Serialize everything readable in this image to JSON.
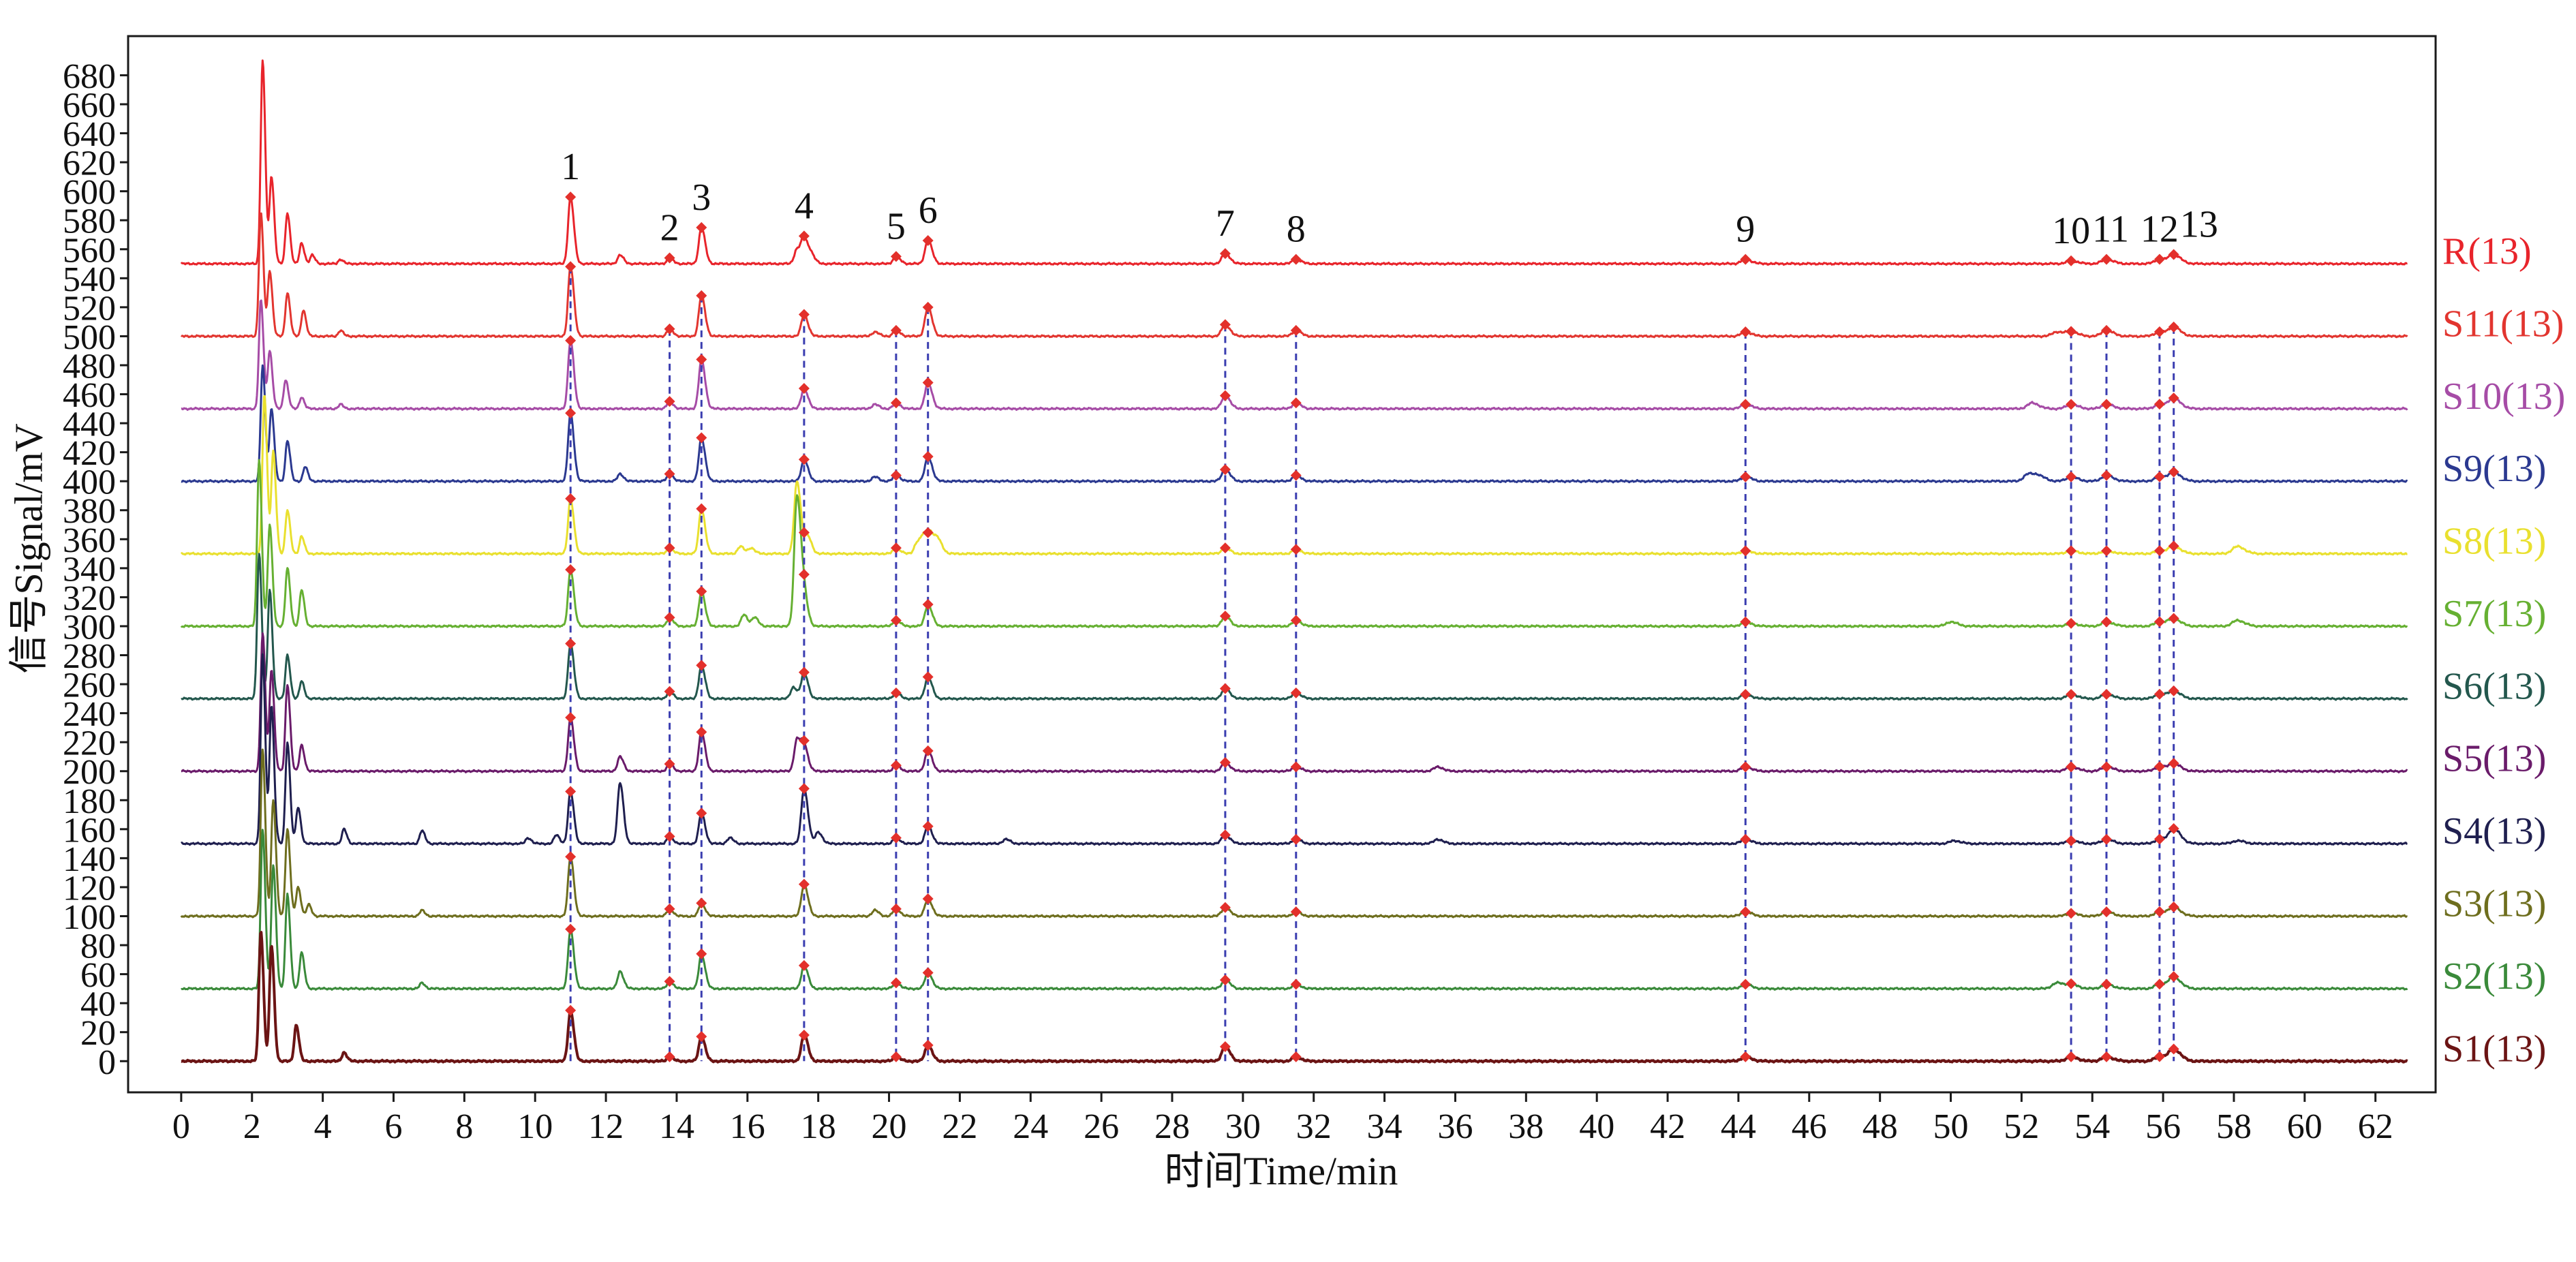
{
  "chart_data": {
    "type": "line",
    "xlabel": "时间Time/min",
    "ylabel": "信号Signal/mV",
    "xlim": [
      -1.5,
      63.7
    ],
    "ylim": [
      -21.5,
      707
    ],
    "x_ticks": [
      0,
      2,
      4,
      6,
      8,
      10,
      12,
      14,
      16,
      18,
      20,
      22,
      24,
      26,
      28,
      30,
      32,
      34,
      36,
      38,
      40,
      42,
      44,
      46,
      48,
      50,
      52,
      54,
      56,
      58,
      60,
      62
    ],
    "y_ticks": [
      0,
      20,
      40,
      60,
      80,
      100,
      120,
      140,
      160,
      180,
      200,
      220,
      240,
      260,
      280,
      300,
      320,
      340,
      360,
      380,
      400,
      420,
      440,
      460,
      480,
      500,
      520,
      540,
      560,
      580,
      600,
      620,
      640,
      660,
      680
    ],
    "grid": false,
    "time_range": [
      0,
      62.9
    ],
    "marker_color": "#e3302b",
    "guide_line_color": "#3a3db0",
    "marked_peaks": [
      {
        "label": "1",
        "time": 11.0
      },
      {
        "label": "2",
        "time": 13.8
      },
      {
        "label": "3",
        "time": 14.7
      },
      {
        "label": "4",
        "time": 17.6
      },
      {
        "label": "5",
        "time": 20.2
      },
      {
        "label": "6",
        "time": 21.1
      },
      {
        "label": "7",
        "time": 29.5
      },
      {
        "label": "8",
        "time": 31.5
      },
      {
        "label": "9",
        "time": 44.2
      },
      {
        "label": "10",
        "time": 53.4
      },
      {
        "label": "11",
        "time": 54.4
      },
      {
        "label": "12",
        "time": 55.9
      },
      {
        "label": "13",
        "time": 56.3
      }
    ],
    "series": [
      {
        "name": "R(13)",
        "color": "#e8242b",
        "offset": 550,
        "peaks": [
          [
            2.3,
            140
          ],
          [
            2.55,
            60
          ],
          [
            3.0,
            35
          ],
          [
            3.4,
            14
          ],
          [
            3.7,
            6
          ],
          [
            4.5,
            3
          ],
          [
            11.0,
            46
          ],
          [
            12.4,
            6
          ],
          [
            13.8,
            4
          ],
          [
            14.7,
            25
          ],
          [
            17.4,
            10
          ],
          [
            17.6,
            17
          ],
          [
            17.8,
            6
          ],
          [
            20.2,
            5
          ],
          [
            21.1,
            16
          ],
          [
            29.5,
            7
          ],
          [
            31.5,
            3
          ],
          [
            44.2,
            3
          ],
          [
            53.4,
            2
          ],
          [
            54.4,
            3
          ],
          [
            55.9,
            3
          ],
          [
            56.3,
            6
          ]
        ]
      },
      {
        "name": "S11(13)",
        "color": "#e2352f",
        "offset": 500,
        "peaks": [
          [
            2.25,
            85
          ],
          [
            2.5,
            45
          ],
          [
            3.0,
            30
          ],
          [
            3.45,
            18
          ],
          [
            4.5,
            4
          ],
          [
            11.0,
            48
          ],
          [
            13.8,
            5
          ],
          [
            14.7,
            28
          ],
          [
            17.6,
            15
          ],
          [
            19.6,
            3
          ],
          [
            20.2,
            4
          ],
          [
            21.1,
            20
          ],
          [
            29.5,
            8
          ],
          [
            31.5,
            4
          ],
          [
            44.2,
            3
          ],
          [
            53.0,
            3
          ],
          [
            53.4,
            3
          ],
          [
            54.4,
            4
          ],
          [
            55.9,
            3
          ],
          [
            56.3,
            6
          ]
        ]
      },
      {
        "name": "S10(13)",
        "color": "#a64ca6",
        "offset": 450,
        "peaks": [
          [
            2.25,
            75
          ],
          [
            2.5,
            40
          ],
          [
            2.95,
            20
          ],
          [
            3.4,
            8
          ],
          [
            4.5,
            3
          ],
          [
            11.0,
            47
          ],
          [
            13.8,
            5
          ],
          [
            14.7,
            34
          ],
          [
            17.6,
            14
          ],
          [
            19.6,
            3
          ],
          [
            20.2,
            4
          ],
          [
            21.1,
            18
          ],
          [
            29.5,
            9
          ],
          [
            31.5,
            4
          ],
          [
            44.2,
            3
          ],
          [
            52.3,
            4
          ],
          [
            53.4,
            3
          ],
          [
            54.4,
            3
          ],
          [
            55.9,
            3
          ],
          [
            56.3,
            7
          ]
        ]
      },
      {
        "name": "S9(13)",
        "color": "#2b3990",
        "offset": 400,
        "peaks": [
          [
            2.3,
            80
          ],
          [
            2.55,
            50
          ],
          [
            3.0,
            28
          ],
          [
            3.5,
            10
          ],
          [
            11.0,
            47
          ],
          [
            12.4,
            5
          ],
          [
            13.8,
            5
          ],
          [
            14.7,
            30
          ],
          [
            17.6,
            15
          ],
          [
            19.6,
            3
          ],
          [
            20.2,
            4
          ],
          [
            21.1,
            17
          ],
          [
            29.5,
            8
          ],
          [
            31.5,
            4
          ],
          [
            44.2,
            3
          ],
          [
            52.2,
            5
          ],
          [
            52.5,
            3
          ],
          [
            53.4,
            3
          ],
          [
            54.4,
            4
          ],
          [
            55.9,
            3
          ],
          [
            56.3,
            6
          ]
        ]
      },
      {
        "name": "S8(13)",
        "color": "#e9e02f",
        "offset": 350,
        "peaks": [
          [
            2.35,
            110
          ],
          [
            2.6,
            70
          ],
          [
            3.0,
            30
          ],
          [
            3.4,
            12
          ],
          [
            11.0,
            38
          ],
          [
            13.8,
            4
          ],
          [
            14.7,
            31
          ],
          [
            15.8,
            5
          ],
          [
            16.1,
            4
          ],
          [
            17.4,
            50
          ],
          [
            17.7,
            12
          ],
          [
            20.2,
            4
          ],
          [
            20.8,
            8
          ],
          [
            21.0,
            12
          ],
          [
            21.2,
            12
          ],
          [
            21.4,
            8
          ],
          [
            29.5,
            4
          ],
          [
            31.5,
            3
          ],
          [
            44.2,
            2
          ],
          [
            53.4,
            2
          ],
          [
            54.4,
            2
          ],
          [
            55.9,
            2
          ],
          [
            56.3,
            5
          ],
          [
            58.1,
            5
          ]
        ]
      },
      {
        "name": "S7(13)",
        "color": "#66b032",
        "offset": 300,
        "peaks": [
          [
            2.2,
            115
          ],
          [
            2.5,
            70
          ],
          [
            3.0,
            40
          ],
          [
            3.4,
            25
          ],
          [
            11.0,
            39
          ],
          [
            13.8,
            6
          ],
          [
            14.7,
            24
          ],
          [
            15.9,
            8
          ],
          [
            16.2,
            6
          ],
          [
            17.4,
            90
          ],
          [
            17.6,
            19
          ],
          [
            20.2,
            4
          ],
          [
            21.1,
            15
          ],
          [
            29.5,
            7
          ],
          [
            31.5,
            4
          ],
          [
            44.2,
            3
          ],
          [
            50.0,
            3
          ],
          [
            53.4,
            2
          ],
          [
            54.4,
            3
          ],
          [
            55.9,
            3
          ],
          [
            56.3,
            5
          ],
          [
            58.1,
            4
          ]
        ]
      },
      {
        "name": "S6(13)",
        "color": "#23574d",
        "offset": 250,
        "peaks": [
          [
            2.2,
            100
          ],
          [
            2.5,
            75
          ],
          [
            3.0,
            30
          ],
          [
            3.4,
            12
          ],
          [
            11.0,
            38
          ],
          [
            13.8,
            5
          ],
          [
            14.7,
            23
          ],
          [
            17.3,
            8
          ],
          [
            17.6,
            18
          ],
          [
            20.2,
            4
          ],
          [
            21.1,
            15
          ],
          [
            29.5,
            7
          ],
          [
            31.5,
            4
          ],
          [
            44.2,
            3
          ],
          [
            53.4,
            3
          ],
          [
            54.4,
            3
          ],
          [
            55.9,
            3
          ],
          [
            56.3,
            5
          ]
        ]
      },
      {
        "name": "S5(13)",
        "color": "#6a1b6a",
        "offset": 200,
        "peaks": [
          [
            2.3,
            95
          ],
          [
            2.55,
            70
          ],
          [
            3.0,
            60
          ],
          [
            3.4,
            18
          ],
          [
            11.0,
            37
          ],
          [
            12.4,
            10
          ],
          [
            13.8,
            5
          ],
          [
            14.7,
            27
          ],
          [
            17.4,
            22
          ],
          [
            17.6,
            17
          ],
          [
            20.2,
            4
          ],
          [
            21.1,
            14
          ],
          [
            29.5,
            6
          ],
          [
            31.5,
            3
          ],
          [
            35.5,
            3
          ],
          [
            44.2,
            3
          ],
          [
            53.4,
            3
          ],
          [
            54.4,
            3
          ],
          [
            55.9,
            3
          ],
          [
            56.3,
            5
          ]
        ]
      },
      {
        "name": "S4(13)",
        "color": "#1f1f4f",
        "offset": 150,
        "peaks": [
          [
            2.3,
            130
          ],
          [
            2.55,
            95
          ],
          [
            3.0,
            70
          ],
          [
            3.3,
            25
          ],
          [
            4.6,
            10
          ],
          [
            6.8,
            9
          ],
          [
            9.8,
            4
          ],
          [
            10.6,
            6
          ],
          [
            11.0,
            36
          ],
          [
            12.4,
            42
          ],
          [
            13.8,
            5
          ],
          [
            14.7,
            21
          ],
          [
            15.5,
            4
          ],
          [
            17.6,
            38
          ],
          [
            18.0,
            8
          ],
          [
            20.2,
            4
          ],
          [
            21.1,
            12
          ],
          [
            23.3,
            3
          ],
          [
            29.5,
            6
          ],
          [
            31.5,
            3
          ],
          [
            35.5,
            3
          ],
          [
            44.2,
            3
          ],
          [
            50.1,
            2
          ],
          [
            53.4,
            2
          ],
          [
            54.4,
            3
          ],
          [
            55.9,
            3
          ],
          [
            56.3,
            10
          ],
          [
            58.1,
            2
          ]
        ]
      },
      {
        "name": "S3(13)",
        "color": "#6e6e1e",
        "offset": 100,
        "peaks": [
          [
            2.3,
            115
          ],
          [
            2.6,
            80
          ],
          [
            3.0,
            60
          ],
          [
            3.3,
            20
          ],
          [
            3.6,
            8
          ],
          [
            6.8,
            4
          ],
          [
            11.0,
            41
          ],
          [
            13.8,
            5
          ],
          [
            14.7,
            9
          ],
          [
            17.6,
            22
          ],
          [
            19.6,
            4
          ],
          [
            20.2,
            5
          ],
          [
            21.1,
            12
          ],
          [
            29.5,
            6
          ],
          [
            31.5,
            3
          ],
          [
            44.2,
            3
          ],
          [
            53.4,
            2
          ],
          [
            54.4,
            3
          ],
          [
            55.9,
            3
          ],
          [
            56.3,
            6
          ]
        ]
      },
      {
        "name": "S2(13)",
        "color": "#3a8a3a",
        "offset": 50,
        "peaks": [
          [
            2.3,
            110
          ],
          [
            2.6,
            85
          ],
          [
            3.0,
            65
          ],
          [
            3.4,
            25
          ],
          [
            6.8,
            4
          ],
          [
            11.0,
            41
          ],
          [
            12.4,
            12
          ],
          [
            13.8,
            5
          ],
          [
            14.7,
            24
          ],
          [
            17.6,
            16
          ],
          [
            20.2,
            4
          ],
          [
            21.1,
            11
          ],
          [
            29.5,
            6
          ],
          [
            31.5,
            3
          ],
          [
            44.2,
            3
          ],
          [
            53.0,
            4
          ],
          [
            53.4,
            3
          ],
          [
            54.4,
            3
          ],
          [
            55.9,
            3
          ],
          [
            56.3,
            8
          ]
        ]
      },
      {
        "name": "S1(13)",
        "color": "#6b1414",
        "offset": 0,
        "peaks": [
          [
            2.25,
            90
          ],
          [
            2.55,
            80
          ],
          [
            3.25,
            25
          ],
          [
            4.6,
            6
          ],
          [
            11.0,
            35
          ],
          [
            13.8,
            3
          ],
          [
            14.7,
            17
          ],
          [
            17.6,
            18
          ],
          [
            20.2,
            3
          ],
          [
            21.1,
            11
          ],
          [
            29.5,
            10
          ],
          [
            31.5,
            3
          ],
          [
            44.2,
            3
          ],
          [
            53.4,
            3
          ],
          [
            54.4,
            3
          ],
          [
            55.9,
            3
          ],
          [
            56.3,
            8
          ]
        ]
      }
    ]
  }
}
